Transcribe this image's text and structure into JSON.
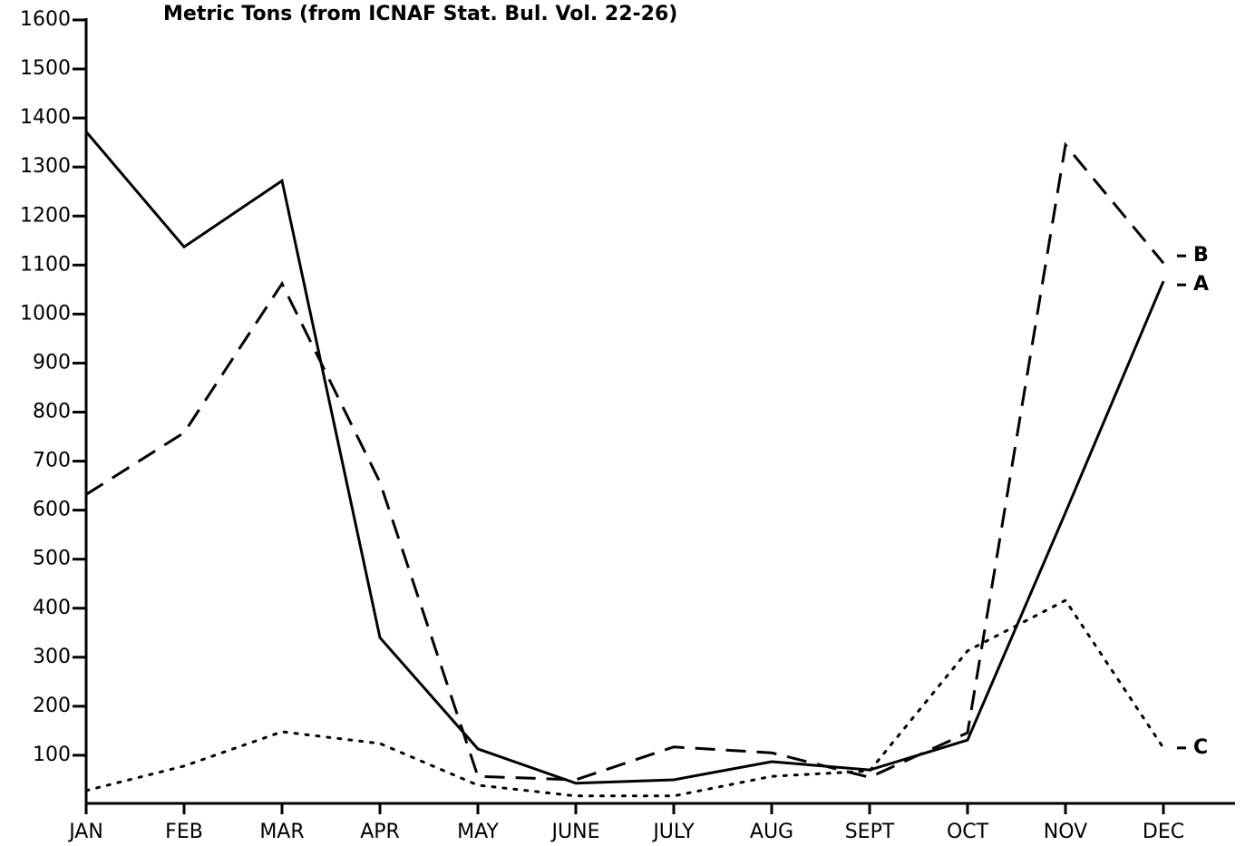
{
  "chart_data": {
    "type": "line",
    "title": "Metric Tons (from ICNAF Stat. Bul. Vol. 22-26)",
    "categories": [
      "JAN",
      "FEB",
      "MAR",
      "APR",
      "MAY",
      "JUNE",
      "JULY",
      "AUG",
      "SEPT",
      "OCT",
      "NOV",
      "DEC"
    ],
    "series": [
      {
        "name": "A",
        "color": "#000000",
        "values": [
          1372,
          1137,
          1272,
          340,
          113,
          43,
          50,
          87,
          70,
          131,
          595,
          1067
        ]
      },
      {
        "name": "B",
        "color": "#000000",
        "values": [
          632,
          758,
          1062,
          657,
          57,
          50,
          117,
          105,
          55,
          146,
          1345,
          1104
        ]
      },
      {
        "name": "C",
        "color": "#000000",
        "values": [
          28,
          78,
          148,
          124,
          39,
          17,
          17,
          57,
          68,
          313,
          416,
          115
        ]
      }
    ],
    "ylim": [
      0,
      1600
    ],
    "yticks": [
      100,
      200,
      300,
      400,
      500,
      600,
      700,
      800,
      900,
      1000,
      1100,
      1200,
      1300,
      1400,
      1500,
      1600
    ]
  }
}
